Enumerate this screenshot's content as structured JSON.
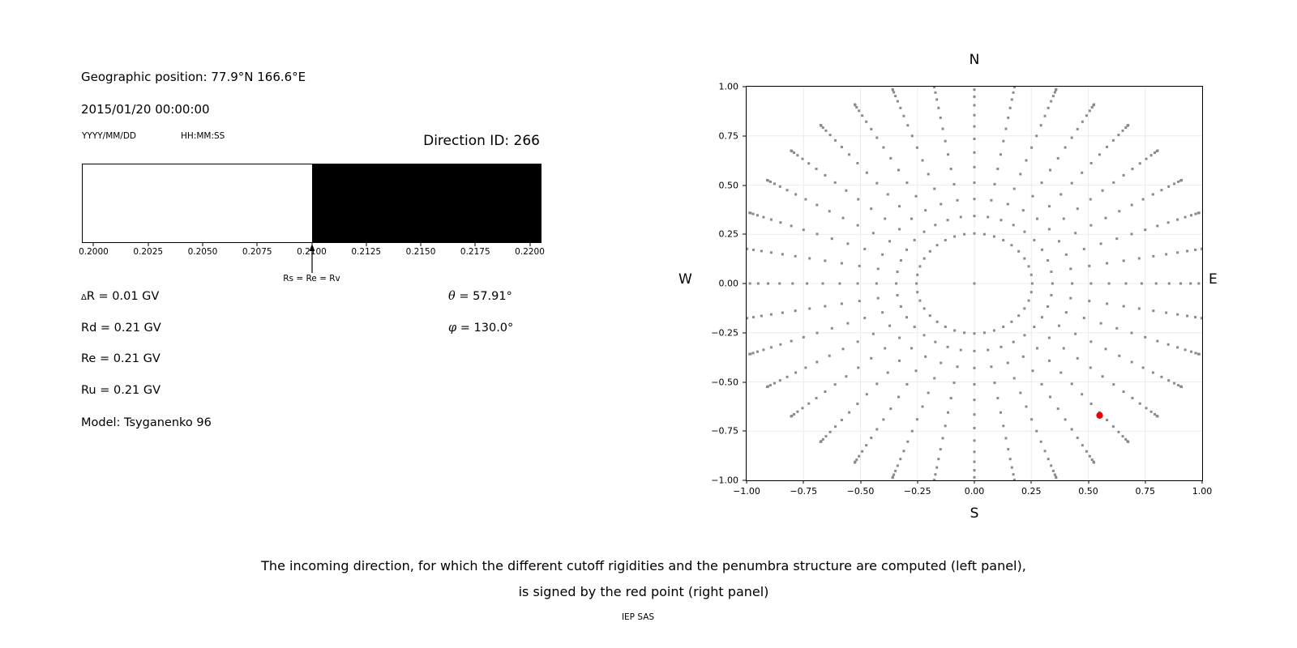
{
  "left_panel": {
    "geo_position": "Geographic position: 77.9°N 166.6°E",
    "datetime": "2015/01/20 00:00:00",
    "date_format_label": "YYYY/MM/DD",
    "time_format_label": "HH:MM:SS",
    "direction_id": "Direction ID: 266",
    "params": [
      {
        "sym": "Δ",
        "text": "R = 0.01 GV"
      },
      {
        "sym": "",
        "text": "Rd = 0.21 GV"
      },
      {
        "sym": "",
        "text": "Re = 0.21 GV"
      },
      {
        "sym": "",
        "text": "Ru = 0.21 GV"
      }
    ],
    "angles": [
      {
        "sym": "θ",
        "text": " = 57.91°"
      },
      {
        "sym": "φ",
        "text": " = 130.0°"
      }
    ],
    "model": "Model: Tsyganenko 96"
  },
  "chart_data": [
    {
      "type": "bar",
      "name": "penumbra-structure-bar",
      "xlim": [
        0.1995,
        0.2205
      ],
      "x_ticks": [
        0.2,
        0.2025,
        0.205,
        0.2075,
        0.21,
        0.2125,
        0.215,
        0.2175,
        0.22
      ],
      "tick_labels": [
        "0.2000",
        "0.2025",
        "0.2050",
        "0.2075",
        "0.2100",
        "0.2125",
        "0.2150",
        "0.2175",
        "0.2200"
      ],
      "segments": [
        {
          "from": 0.1995,
          "to": 0.21,
          "color": "#ffffff",
          "meaning": "allowed"
        },
        {
          "from": 0.21,
          "to": 0.2205,
          "color": "#000000",
          "meaning": "forbidden"
        }
      ],
      "arrow_value": 0.21,
      "arrow_label": "Rs = Re = Rv"
    },
    {
      "type": "scatter",
      "name": "incoming-directions-grid",
      "orientation_labels": {
        "top": "N",
        "bottom": "S",
        "left": "W",
        "right": "E"
      },
      "xlim": [
        -1,
        1
      ],
      "ylim": [
        -1,
        1
      ],
      "x_ticks": [
        -1.0,
        -0.75,
        -0.5,
        -0.25,
        0.0,
        0.25,
        0.5,
        0.75,
        1.0
      ],
      "y_ticks": [
        -1.0,
        -0.75,
        -0.5,
        -0.25,
        0.0,
        0.25,
        0.5,
        0.75,
        1.0
      ],
      "x_tick_labels": [
        "−1.00",
        "−0.75",
        "−0.50",
        "−0.25",
        "0.00",
        "0.25",
        "0.50",
        "0.75",
        "1.00"
      ],
      "y_tick_labels": [
        "−1.00",
        "−0.75",
        "−0.50",
        "−0.25",
        "0.00",
        "0.25",
        "0.50",
        "0.75",
        "1.00"
      ],
      "grid": true,
      "grid_color": "#ececec",
      "pattern": {
        "description": "36 radial spokes of gray dots, one per 10° azimuth (bearing from N, clockwise to E); along each spoke dots at radius r = 1.05*sin(zenith), zenith 14°..90° in 16 steps, giving an inner ring at r≈0.25 and bunched dot clusters at the outer tips; plus a single dot at the origin",
        "azimuth_step_deg": 10,
        "zenith_start_deg": 14,
        "zenith_end_deg": 90,
        "zenith_steps": 16,
        "radius_scale": 1.05,
        "center_dot": true,
        "dot_color": "#8a8a8a",
        "dot_size_px": 3
      },
      "red_point": {
        "x": 0.55,
        "y": -0.67,
        "color": "#f00000",
        "radius_px": 4.2
      }
    }
  ],
  "caption": {
    "line1": "The incoming direction, for which the different cutoff rigidities and the penumbra structure are computed (left panel),",
    "line2": "is signed by the red point (right panel)"
  },
  "credit": "IEP SAS"
}
